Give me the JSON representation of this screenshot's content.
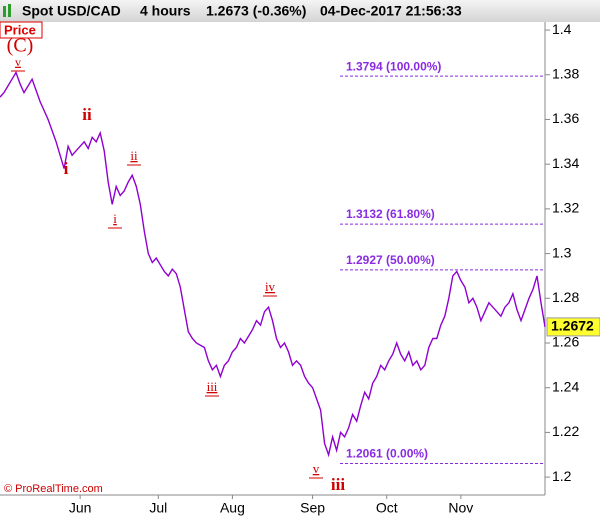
{
  "chart_data": {
    "type": "line",
    "title": "Spot USD/CAD",
    "interval": "4 hours",
    "quote": "1.2673 (-0.36%)",
    "timestamp": "04-Dec-2017 21:56:33",
    "panel_label": "Price",
    "footer": "© ProRealTime.com",
    "series": [
      {
        "name": "Spot USD/CAD",
        "color": "#9000d0",
        "values": [
          1.37,
          1.372,
          1.375,
          1.378,
          1.381,
          1.376,
          1.372,
          1.375,
          1.378,
          1.373,
          1.368,
          1.364,
          1.36,
          1.355,
          1.35,
          1.344,
          1.338,
          1.348,
          1.344,
          1.346,
          1.348,
          1.35,
          1.347,
          1.352,
          1.35,
          1.354,
          1.346,
          1.332,
          1.322,
          1.33,
          1.326,
          1.328,
          1.332,
          1.335,
          1.33,
          1.322,
          1.31,
          1.3,
          1.296,
          1.298,
          1.295,
          1.292,
          1.29,
          1.293,
          1.291,
          1.285,
          1.275,
          1.265,
          1.262,
          1.26,
          1.259,
          1.258,
          1.252,
          1.248,
          1.25,
          1.245,
          1.25,
          1.252,
          1.256,
          1.258,
          1.262,
          1.26,
          1.263,
          1.266,
          1.27,
          1.268,
          1.274,
          1.276,
          1.27,
          1.262,
          1.258,
          1.26,
          1.256,
          1.25,
          1.252,
          1.25,
          1.245,
          1.242,
          1.24,
          1.235,
          1.23,
          1.215,
          1.21,
          1.218,
          1.212,
          1.22,
          1.218,
          1.222,
          1.228,
          1.225,
          1.232,
          1.238,
          1.235,
          1.242,
          1.245,
          1.25,
          1.248,
          1.252,
          1.255,
          1.26,
          1.255,
          1.252,
          1.256,
          1.25,
          1.252,
          1.248,
          1.25,
          1.258,
          1.262,
          1.262,
          1.268,
          1.272,
          1.28,
          1.29,
          1.292,
          1.288,
          1.285,
          1.278,
          1.28,
          1.276,
          1.27,
          1.274,
          1.278,
          1.276,
          1.274,
          1.272,
          1.276,
          1.278,
          1.282,
          1.275,
          1.27,
          1.275,
          1.28,
          1.284,
          1.29,
          1.278,
          1.2672
        ]
      }
    ],
    "xlim": [
      0,
      136
    ],
    "xticks": [
      {
        "value": 20,
        "label": "Jun"
      },
      {
        "value": 39.5,
        "label": "Jul"
      },
      {
        "value": 58,
        "label": "Aug"
      },
      {
        "value": 78,
        "label": "Sep"
      },
      {
        "value": 96.5,
        "label": "Oct"
      },
      {
        "value": 115,
        "label": "Nov"
      }
    ],
    "ylim": [
      1.192,
      1.4036
    ],
    "yticks": [
      1.2,
      1.22,
      1.24,
      1.26,
      1.28,
      1.3,
      1.32,
      1.34,
      1.36,
      1.38,
      1.4
    ],
    "levels": [
      {
        "value": 1.3794,
        "label": "1.3794 (100.00%)"
      },
      {
        "value": 1.3132,
        "label": "1.3132 (61.80%)"
      },
      {
        "value": 1.2927,
        "label": "1.2927 (50.00%)"
      },
      {
        "value": 1.2061,
        "label": "1.2061 (0.00%)"
      }
    ],
    "level_color": "#8a2be2",
    "annotations": [
      {
        "text": "(C)"
      },
      {
        "text": "v"
      },
      {
        "text": "ii"
      },
      {
        "text": "i"
      },
      {
        "text": "ii"
      },
      {
        "text": "i"
      },
      {
        "text": "iii"
      },
      {
        "text": "iv"
      },
      {
        "text": "v"
      },
      {
        "text": "iii"
      }
    ],
    "annotation_color": "#d00000"
  }
}
